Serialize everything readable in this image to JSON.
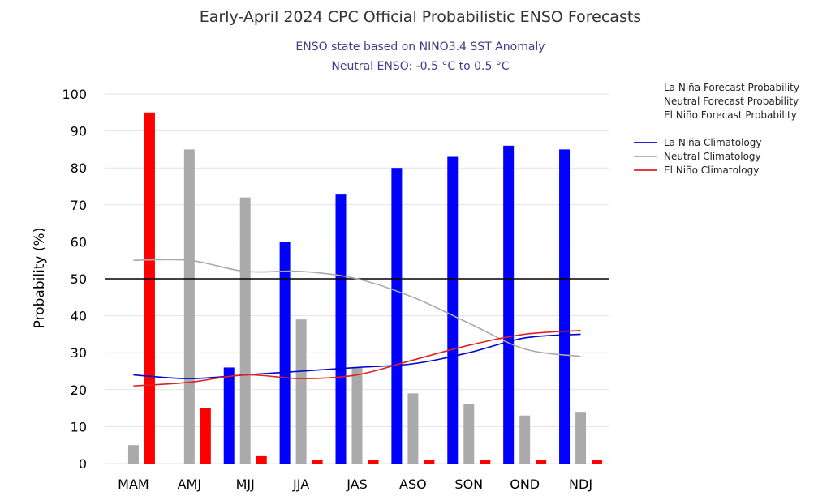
{
  "chart_data": {
    "type": "bar",
    "title": "Early-April 2024 CPC Official Probabilistic ENSO Forecasts",
    "subtitle_lines": [
      "ENSO state based on NINO3.4 SST Anomaly",
      "Neutral ENSO: -0.5 °C to 0.5 °C"
    ],
    "xlabel": "",
    "ylabel": "Probability (%)",
    "ylim": [
      0,
      100
    ],
    "yticks": [
      0,
      10,
      20,
      30,
      40,
      50,
      60,
      70,
      80,
      90,
      100
    ],
    "grid": true,
    "reference_line": 50,
    "categories": [
      "MAM",
      "AMJ",
      "MJJ",
      "JJA",
      "JAS",
      "ASO",
      "SON",
      "OND",
      "NDJ"
    ],
    "series": [
      {
        "name": "La Niña Forecast Probability",
        "kind": "bar",
        "color": "#0000ff",
        "values": [
          0,
          0,
          26,
          60,
          73,
          80,
          83,
          86,
          85
        ]
      },
      {
        "name": "Neutral Forecast Probability",
        "kind": "bar",
        "color": "#aaaaaa",
        "values": [
          5,
          85,
          72,
          39,
          26,
          19,
          16,
          13,
          14
        ]
      },
      {
        "name": "El Niño Forecast Probability",
        "kind": "bar",
        "color": "#ff0000",
        "values": [
          95,
          15,
          2,
          1,
          1,
          1,
          1,
          1,
          1
        ]
      },
      {
        "name": "La Niña Climatology",
        "kind": "line",
        "color": "#0000cc",
        "values": [
          24,
          23,
          24,
          25,
          26,
          27,
          30,
          34,
          35
        ]
      },
      {
        "name": "Neutral Climatology",
        "kind": "line",
        "color": "#aaaaaa",
        "values": [
          55,
          55,
          52,
          52,
          50,
          45,
          38,
          31,
          29
        ]
      },
      {
        "name": "El Niño Climatology",
        "kind": "line",
        "color": "#dd2222",
        "values": [
          21,
          22,
          24,
          23,
          24,
          28,
          32,
          35,
          36
        ]
      }
    ],
    "legend_placement": "right"
  }
}
